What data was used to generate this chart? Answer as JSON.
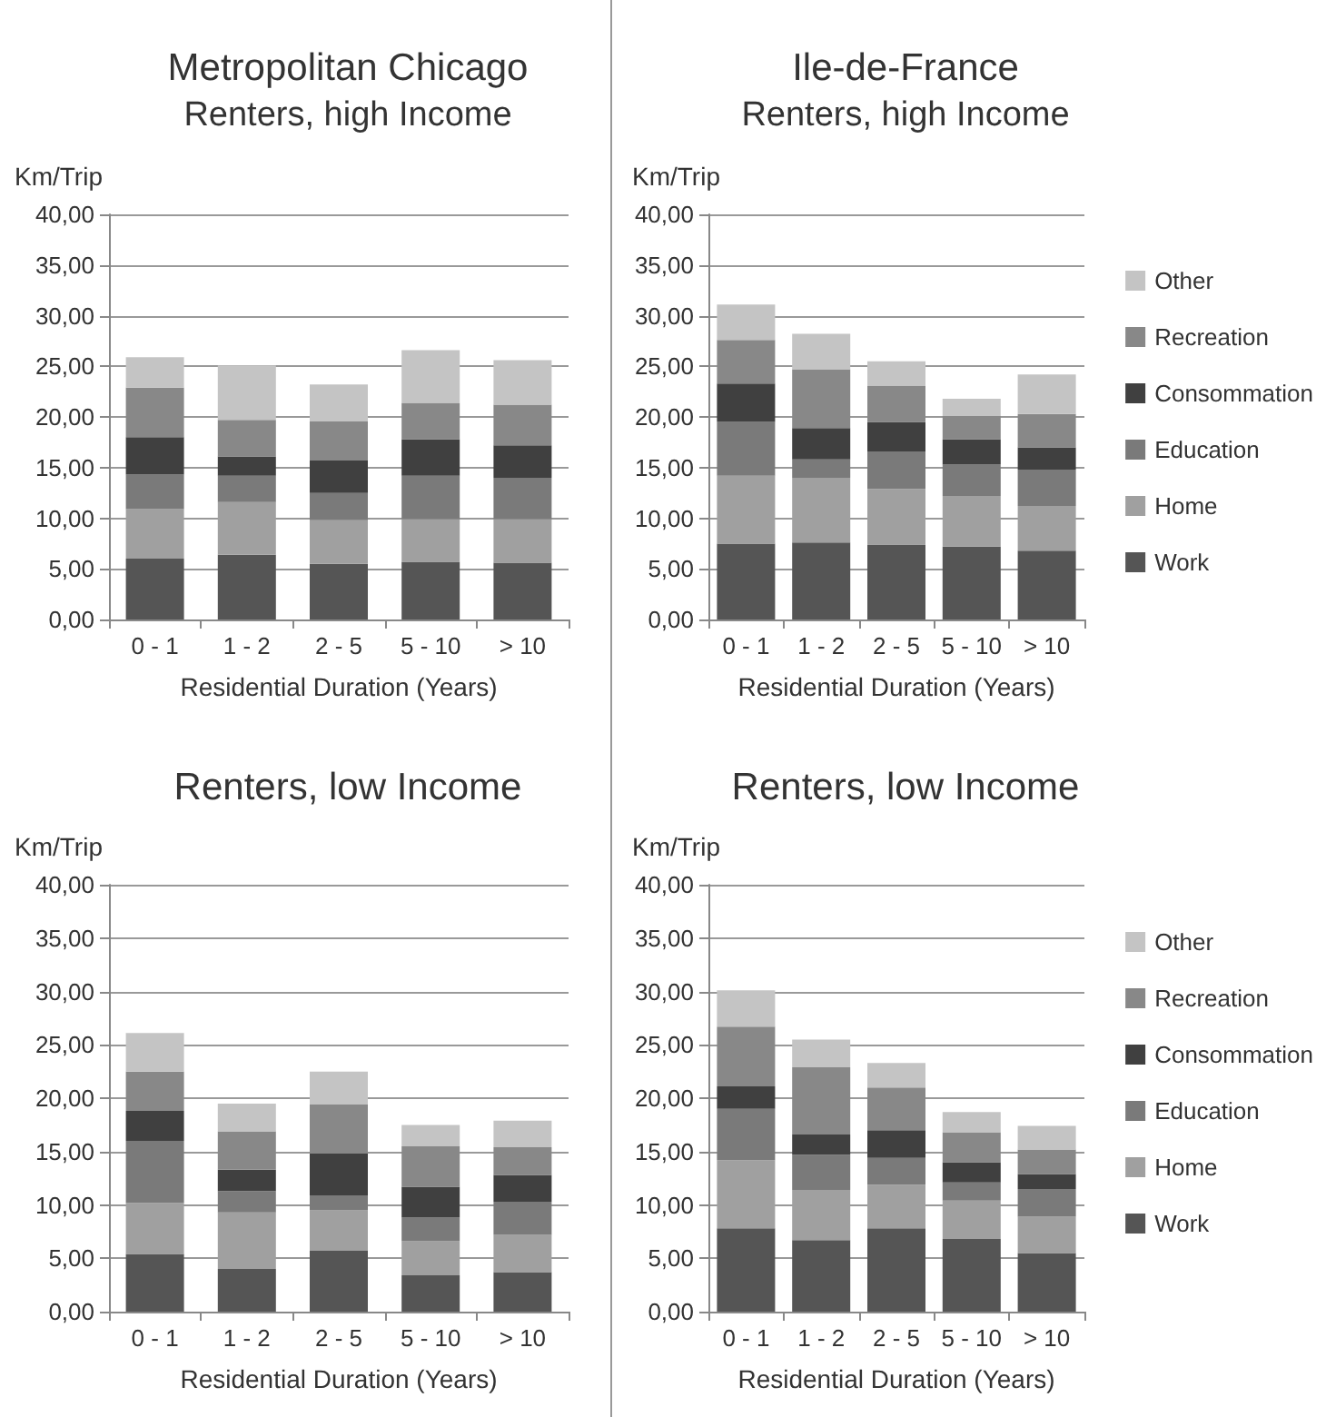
{
  "chart_data": [
    {
      "type": "bar",
      "stacked": true,
      "title": "Metropolitan Chicago",
      "subtitle": "Renters, high Income",
      "xlabel": "Residential Duration (Years)",
      "ylabel": "Km/Trip",
      "categories": [
        "0 - 1",
        "1 - 2",
        "2 - 5",
        "5 - 10",
        "> 10"
      ],
      "ylim": [
        0,
        40
      ],
      "yticks": [
        {
          "value": 0,
          "label": "0,00"
        },
        {
          "value": 5,
          "label": "5,00"
        },
        {
          "value": 10,
          "label": "10,00"
        },
        {
          "value": 15,
          "label": "15,00"
        },
        {
          "value": 20,
          "label": "20,00"
        },
        {
          "value": 25,
          "label": "25,00"
        },
        {
          "value": 30,
          "label": "30,00"
        },
        {
          "value": 35,
          "label": "35,00"
        },
        {
          "value": 40,
          "label": "40,00"
        }
      ],
      "grid": "y",
      "legend": false,
      "series": [
        {
          "color": "#555555",
          "values": [
            6.0,
            6.4,
            5.5,
            5.7,
            5.6
          ]
        },
        {
          "color": "#a0a0a0",
          "values": [
            4.9,
            5.2,
            4.3,
            4.2,
            4.3
          ]
        },
        {
          "color": "#7a7a7a",
          "values": [
            3.4,
            2.6,
            2.7,
            4.3,
            4.1
          ]
        },
        {
          "color": "#404040",
          "values": [
            3.7,
            1.9,
            3.2,
            3.6,
            3.2
          ]
        },
        {
          "color": "#888888",
          "values": [
            4.9,
            3.6,
            3.9,
            3.6,
            4.0
          ]
        },
        {
          "color": "#c4c4c4",
          "values": [
            3.0,
            5.4,
            3.6,
            5.2,
            4.4
          ]
        }
      ]
    },
    {
      "type": "bar",
      "stacked": true,
      "title": "Ile-de-France",
      "subtitle": "Renters, high Income",
      "xlabel": "Residential Duration (Years)",
      "ylabel": "Km/Trip",
      "categories": [
        "0 - 1",
        "1 - 2",
        "2 - 5",
        "5 - 10",
        "> 10"
      ],
      "ylim": [
        0,
        40
      ],
      "yticks": [
        {
          "value": 0,
          "label": "0,00"
        },
        {
          "value": 5,
          "label": "5,00"
        },
        {
          "value": 10,
          "label": "10,00"
        },
        {
          "value": 15,
          "label": "15,00"
        },
        {
          "value": 20,
          "label": "20,00"
        },
        {
          "value": 25,
          "label": "25,00"
        },
        {
          "value": 30,
          "label": "30,00"
        },
        {
          "value": 35,
          "label": "35,00"
        },
        {
          "value": 40,
          "label": "40,00"
        }
      ],
      "grid": "y",
      "legend": "right",
      "series": [
        {
          "name": "Work",
          "color": "#555555",
          "values": [
            7.5,
            7.6,
            7.4,
            7.2,
            6.8
          ]
        },
        {
          "name": "Home",
          "color": "#a0a0a0",
          "values": [
            6.7,
            6.4,
            5.5,
            5.0,
            4.4
          ]
        },
        {
          "name": "Education",
          "color": "#7a7a7a",
          "values": [
            5.3,
            1.8,
            3.7,
            3.1,
            3.6
          ]
        },
        {
          "name": "Consommation",
          "color": "#404040",
          "values": [
            3.8,
            3.1,
            2.9,
            2.5,
            2.2
          ]
        },
        {
          "name": "Recreation",
          "color": "#888888",
          "values": [
            4.3,
            5.8,
            3.6,
            2.3,
            3.3
          ]
        },
        {
          "name": "Other",
          "color": "#c4c4c4",
          "values": [
            3.5,
            3.5,
            2.4,
            1.7,
            3.9
          ]
        }
      ]
    },
    {
      "type": "bar",
      "stacked": true,
      "title": "Renters, low Income",
      "xlabel": "Residential Duration (Years)",
      "ylabel": "Km/Trip",
      "categories": [
        "0 - 1",
        "1 - 2",
        "2 - 5",
        "5 - 10",
        "> 10"
      ],
      "ylim": [
        0,
        40
      ],
      "yticks": [
        {
          "value": 0,
          "label": "0,00"
        },
        {
          "value": 5,
          "label": "5,00"
        },
        {
          "value": 10,
          "label": "10,00"
        },
        {
          "value": 15,
          "label": "15,00"
        },
        {
          "value": 20,
          "label": "20,00"
        },
        {
          "value": 25,
          "label": "25,00"
        },
        {
          "value": 30,
          "label": "30,00"
        },
        {
          "value": 35,
          "label": "35,00"
        },
        {
          "value": 40,
          "label": "40,00"
        }
      ],
      "grid": "y",
      "legend": false,
      "series": [
        {
          "color": "#555555",
          "values": [
            5.4,
            4.0,
            5.7,
            3.4,
            3.7
          ]
        },
        {
          "color": "#a0a0a0",
          "values": [
            4.8,
            5.3,
            3.8,
            3.2,
            3.5
          ]
        },
        {
          "color": "#7a7a7a",
          "values": [
            5.8,
            2.0,
            1.4,
            2.2,
            3.1
          ]
        },
        {
          "color": "#404040",
          "values": [
            2.8,
            2.0,
            3.9,
            2.9,
            2.5
          ]
        },
        {
          "color": "#888888",
          "values": [
            3.7,
            3.6,
            4.6,
            3.8,
            2.6
          ]
        },
        {
          "color": "#c4c4c4",
          "values": [
            3.6,
            2.6,
            3.1,
            2.0,
            2.5
          ]
        }
      ]
    },
    {
      "type": "bar",
      "stacked": true,
      "title": "Renters, low Income",
      "xlabel": "Residential Duration (Years)",
      "ylabel": "Km/Trip",
      "categories": [
        "0 - 1",
        "1 - 2",
        "2 - 5",
        "5 - 10",
        "> 10"
      ],
      "ylim": [
        0,
        40
      ],
      "yticks": [
        {
          "value": 0,
          "label": "0,00"
        },
        {
          "value": 5,
          "label": "5,00"
        },
        {
          "value": 10,
          "label": "10,00"
        },
        {
          "value": 15,
          "label": "15,00"
        },
        {
          "value": 20,
          "label": "20,00"
        },
        {
          "value": 25,
          "label": "25,00"
        },
        {
          "value": 30,
          "label": "30,00"
        },
        {
          "value": 35,
          "label": "35,00"
        },
        {
          "value": 40,
          "label": "40,00"
        }
      ],
      "grid": "y",
      "legend": "right",
      "series": [
        {
          "name": "Work",
          "color": "#555555",
          "values": [
            7.8,
            6.7,
            7.8,
            6.8,
            5.5
          ]
        },
        {
          "name": "Home",
          "color": "#a0a0a0",
          "values": [
            6.4,
            4.7,
            4.1,
            3.6,
            3.4
          ]
        },
        {
          "name": "Education",
          "color": "#7a7a7a",
          "values": [
            4.8,
            3.3,
            2.5,
            1.7,
            2.6
          ]
        },
        {
          "name": "Consommation",
          "color": "#404040",
          "values": [
            2.1,
            1.9,
            2.6,
            1.9,
            1.4
          ]
        },
        {
          "name": "Recreation",
          "color": "#888888",
          "values": [
            5.6,
            6.3,
            4.0,
            2.8,
            2.3
          ]
        },
        {
          "name": "Other",
          "color": "#c4c4c4",
          "values": [
            3.4,
            2.6,
            2.3,
            1.9,
            2.2
          ]
        }
      ]
    }
  ]
}
